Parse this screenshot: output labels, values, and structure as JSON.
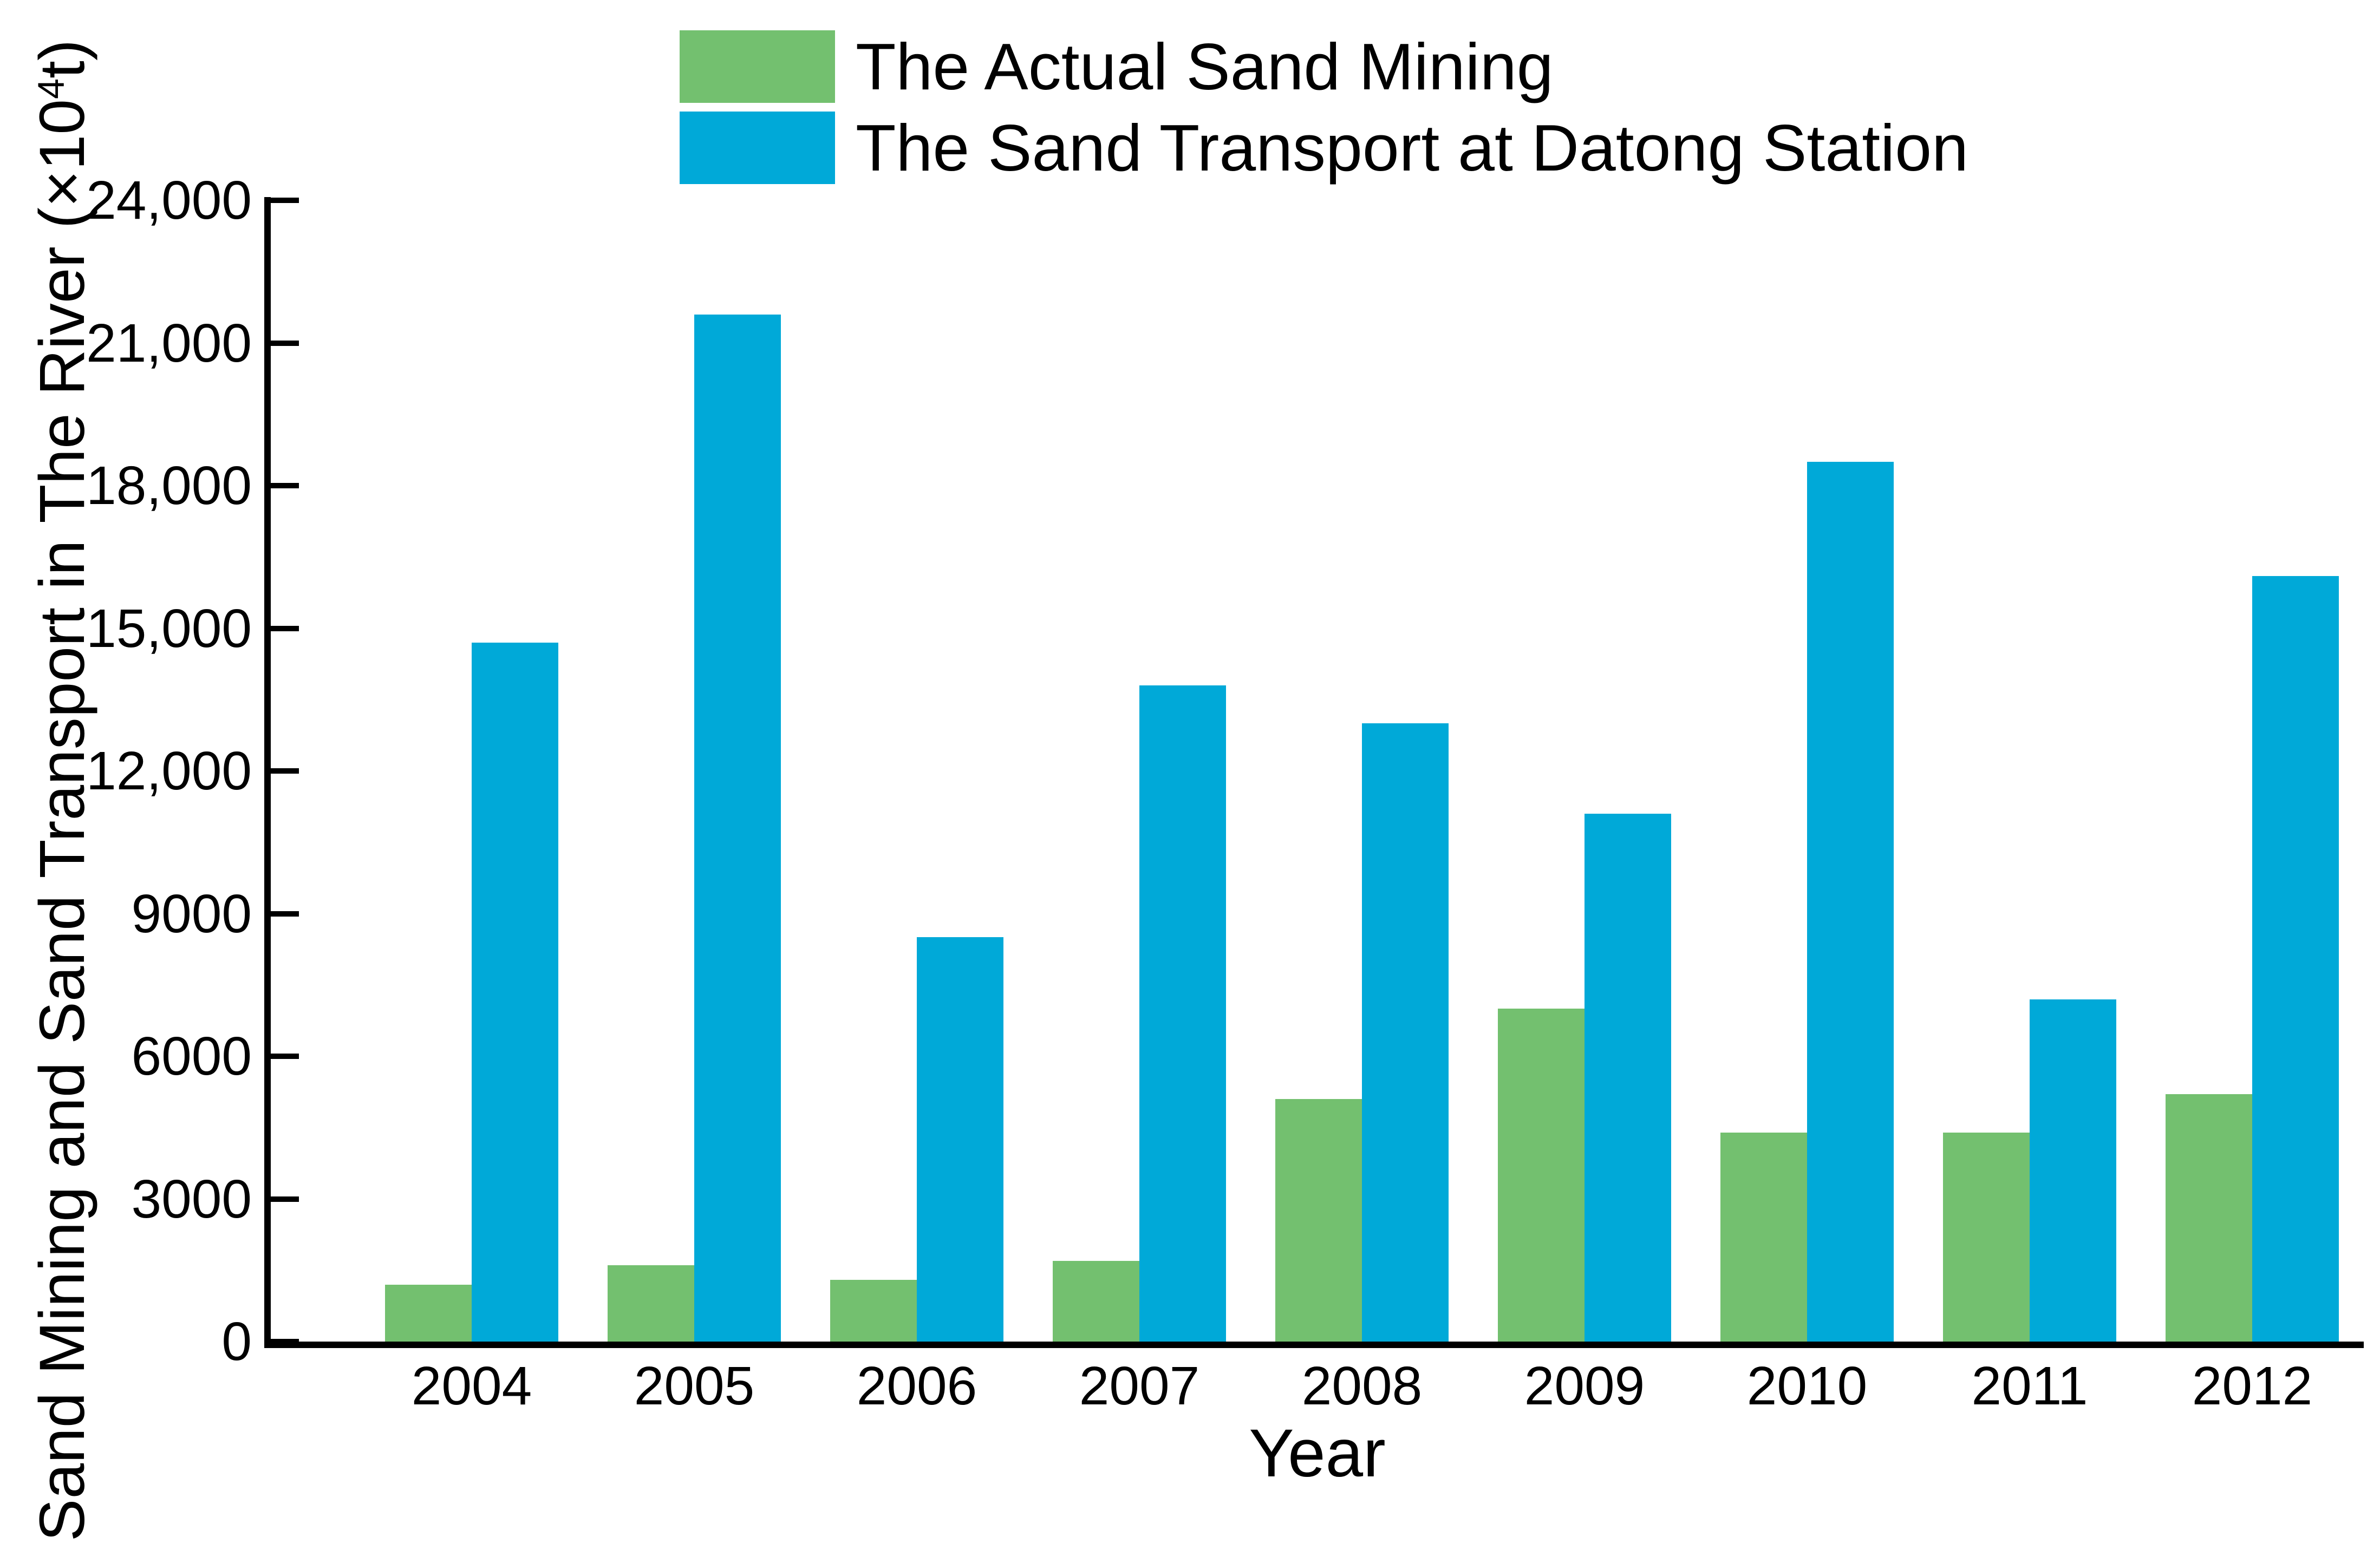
{
  "figure": {
    "background": "#ffffff",
    "text_color": "#000000",
    "axis_color": "#000000"
  },
  "chart_data": {
    "type": "bar",
    "title": "",
    "xlabel": "Year",
    "ylabel": "Sand Mining and Sand Transport in The River (×10⁴t)",
    "ylabel_parts": {
      "prefix": "Sand Mining and Sand Transport in The River (×10",
      "superscript": "4",
      "suffix": "t)"
    },
    "categories": [
      "2004",
      "2005",
      "2006",
      "2007",
      "2008",
      "2009",
      "2010",
      "2011",
      "2012"
    ],
    "series": [
      {
        "name": "The Actual Sand Mining",
        "color": "#73c06f",
        "values": [
          1200,
          1600,
          1300,
          1700,
          5100,
          7000,
          4400,
          4400,
          5200
        ]
      },
      {
        "name": "The Sand Transport at Datong Station",
        "color": "#00a9d8",
        "values": [
          14700,
          21600,
          8500,
          13800,
          13000,
          11100,
          18500,
          7200,
          16100
        ]
      }
    ],
    "ylim": [
      0,
      24000
    ],
    "yticks": [
      {
        "value": 0,
        "label": "0"
      },
      {
        "value": 3000,
        "label": "3000"
      },
      {
        "value": 6000,
        "label": "6000"
      },
      {
        "value": 9000,
        "label": "9000"
      },
      {
        "value": 12000,
        "label": "12,000"
      },
      {
        "value": 15000,
        "label": "15,000"
      },
      {
        "value": 18000,
        "label": "18,000"
      },
      {
        "value": 21000,
        "label": "21,000"
      },
      {
        "value": 24000,
        "label": "24,000"
      }
    ],
    "grid": false,
    "legend_position": "top-inside",
    "tick_direction": "in"
  }
}
